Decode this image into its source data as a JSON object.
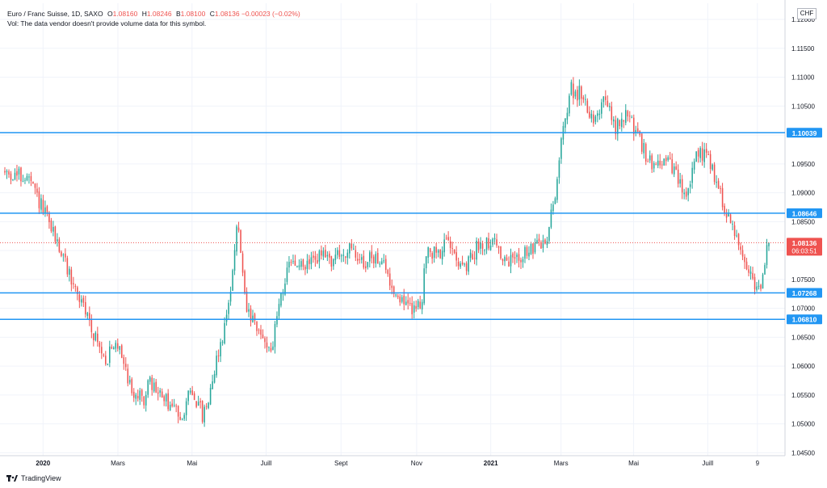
{
  "header": {
    "symbol_line": "Euro / Franc Suisse, 1D, SAXO",
    "open_label": "O",
    "open": "1.08160",
    "high_label": "H",
    "high": "1.08246",
    "low_label": "B",
    "low": "1.08100",
    "close_label": "C",
    "close": "1.08136",
    "change": "−0.00023 (−0.02%)",
    "vol_line": "Vol: The data vendor doesn't provide volume data for this symbol."
  },
  "currency": "CHF",
  "footer": {
    "brand": "TradingView"
  },
  "colors": {
    "up": "#26a69a",
    "down": "#ef5350",
    "level_line": "#2196f3",
    "price_tag": "#ef5350",
    "grid": "#f0f3fa",
    "axis_text": "#131722"
  },
  "chart_data": {
    "type": "candlestick",
    "symbol": "Euro / Franc Suisse",
    "timeframe": "1D",
    "ylim": [
      1.0445,
      1.1228
    ],
    "y_ticks": [
      "1.12000",
      "1.11500",
      "1.11000",
      "1.10500",
      "1.10000",
      "1.09500",
      "1.09000",
      "1.08500",
      "1.08000",
      "1.07500",
      "1.07000",
      "1.06500",
      "1.06000",
      "1.05500",
      "1.05000",
      "1.04500"
    ],
    "x_ticks": [
      {
        "label": "2020",
        "pos": 0.05
      },
      {
        "label": "Mars",
        "pos": 0.148
      },
      {
        "label": "Mai",
        "pos": 0.245
      },
      {
        "label": "Juill",
        "pos": 0.342
      },
      {
        "label": "Sept",
        "pos": 0.44
      },
      {
        "label": "Nov",
        "pos": 0.539
      },
      {
        "label": "2021",
        "pos": 0.636
      },
      {
        "label": "Mars",
        "pos": 0.728
      },
      {
        "label": "Mai",
        "pos": 0.823
      },
      {
        "label": "Juill",
        "pos": 0.92
      },
      {
        "label": "9",
        "pos": 0.985
      }
    ],
    "horizontal_levels": [
      "1.10039",
      "1.08646",
      "1.07268",
      "1.06810"
    ],
    "last_price": "1.08136",
    "countdown": "06:03:51",
    "path_keypoints": [
      [
        0.0,
        1.0935
      ],
      [
        0.03,
        1.0925
      ],
      [
        0.05,
        1.087
      ],
      [
        0.07,
        1.081
      ],
      [
        0.09,
        1.074
      ],
      [
        0.11,
        1.068
      ],
      [
        0.13,
        1.061
      ],
      [
        0.15,
        1.064
      ],
      [
        0.165,
        1.056
      ],
      [
        0.18,
        1.054
      ],
      [
        0.19,
        1.057
      ],
      [
        0.21,
        1.054
      ],
      [
        0.23,
        1.0515
      ],
      [
        0.245,
        1.056
      ],
      [
        0.26,
        1.051
      ],
      [
        0.275,
        1.06
      ],
      [
        0.29,
        1.068
      ],
      [
        0.305,
        1.085
      ],
      [
        0.315,
        1.07
      ],
      [
        0.33,
        1.066
      ],
      [
        0.35,
        1.063
      ],
      [
        0.36,
        1.072
      ],
      [
        0.375,
        1.078
      ],
      [
        0.39,
        1.077
      ],
      [
        0.41,
        1.079
      ],
      [
        0.43,
        1.0785
      ],
      [
        0.45,
        1.08
      ],
      [
        0.47,
        1.078
      ],
      [
        0.49,
        1.079
      ],
      [
        0.51,
        1.073
      ],
      [
        0.53,
        1.07
      ],
      [
        0.545,
        1.0705
      ],
      [
        0.55,
        1.079
      ],
      [
        0.57,
        1.08
      ],
      [
        0.585,
        1.082
      ],
      [
        0.6,
        1.076
      ],
      [
        0.62,
        1.081
      ],
      [
        0.64,
        1.082
      ],
      [
        0.655,
        1.0775
      ],
      [
        0.67,
        1.079
      ],
      [
        0.69,
        1.08
      ],
      [
        0.71,
        1.082
      ],
      [
        0.72,
        1.09
      ],
      [
        0.73,
        1.1
      ],
      [
        0.74,
        1.108
      ],
      [
        0.755,
        1.107
      ],
      [
        0.77,
        1.103
      ],
      [
        0.785,
        1.106
      ],
      [
        0.8,
        1.101
      ],
      [
        0.815,
        1.104
      ],
      [
        0.83,
        1.099
      ],
      [
        0.845,
        1.095
      ],
      [
        0.86,
        1.096
      ],
      [
        0.875,
        1.094
      ],
      [
        0.89,
        1.089
      ],
      [
        0.905,
        1.096
      ],
      [
        0.92,
        1.097
      ],
      [
        0.935,
        1.09
      ],
      [
        0.95,
        1.085
      ],
      [
        0.965,
        1.08
      ],
      [
        0.975,
        1.076
      ],
      [
        0.985,
        1.0735
      ],
      [
        0.99,
        1.073
      ],
      [
        0.995,
        1.078
      ],
      [
        1.0,
        1.0813
      ]
    ]
  }
}
